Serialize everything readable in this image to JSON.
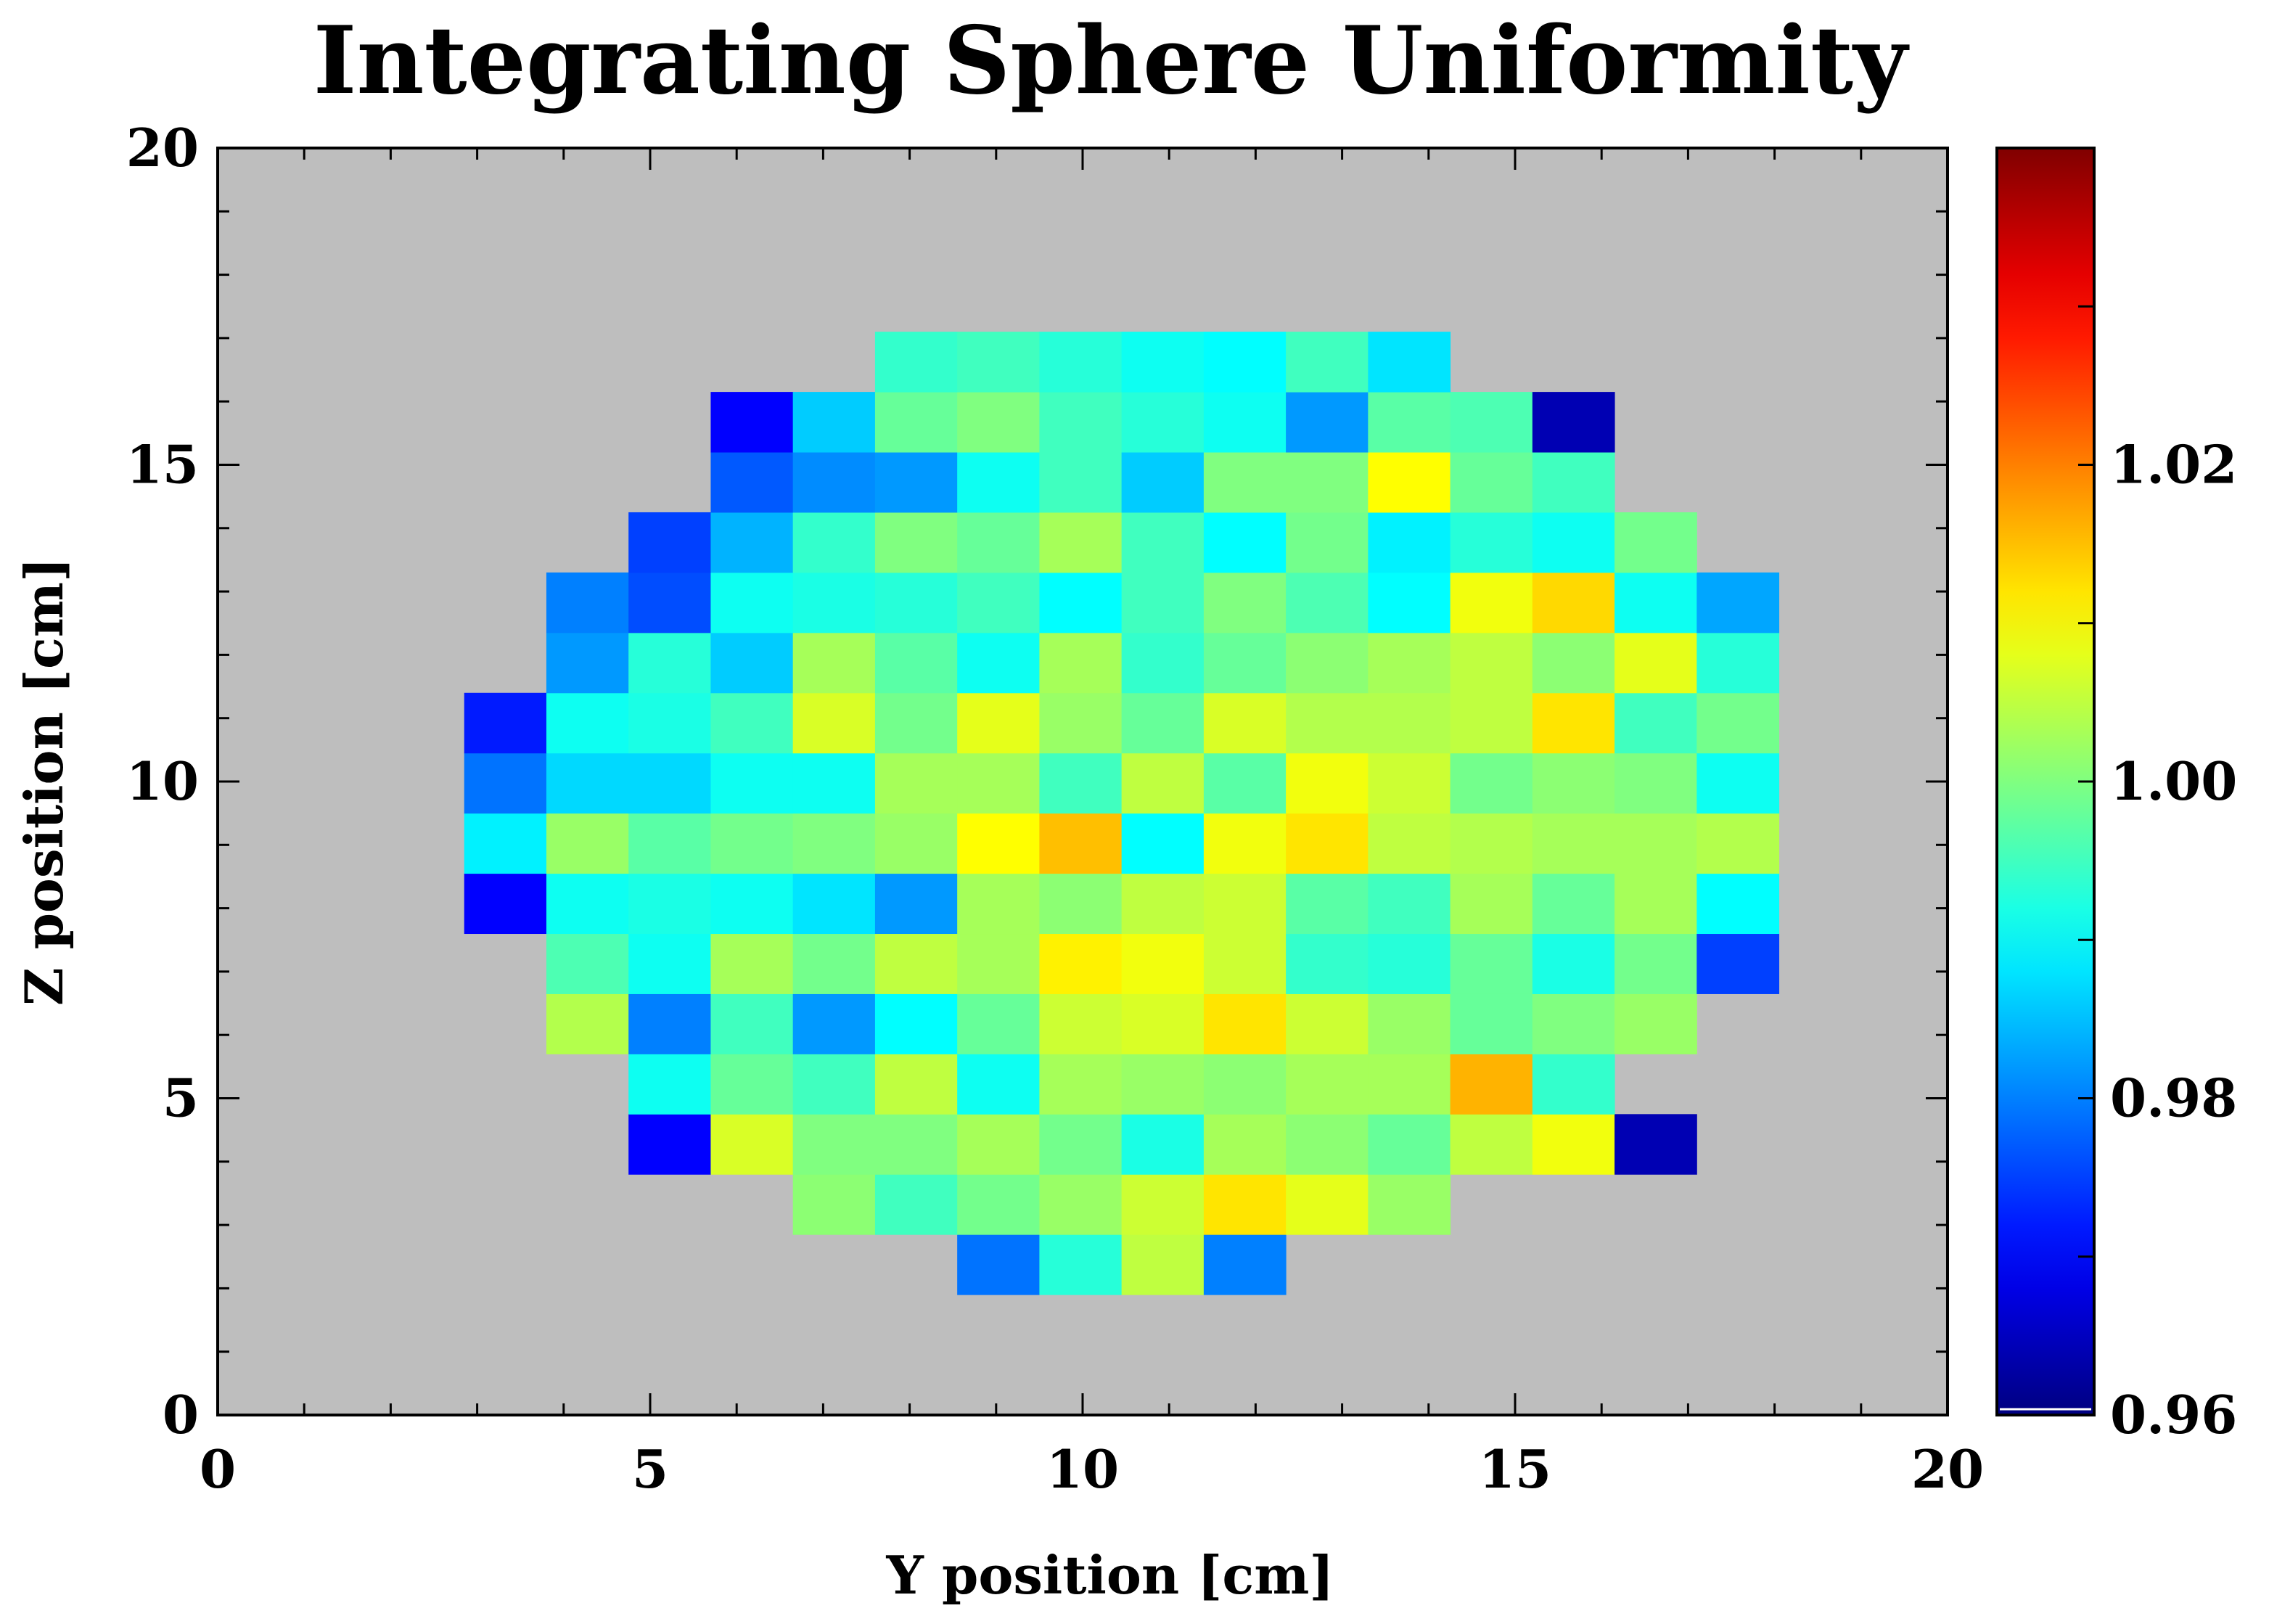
{
  "chart_data": {
    "type": "heatmap",
    "title": "Integrating Sphere Uniformity",
    "xlabel": "Y position [cm]",
    "ylabel": "Z position [cm]",
    "xlim": [
      0,
      20
    ],
    "ylim": [
      0,
      20
    ],
    "xticks": [
      0,
      5,
      10,
      15,
      20
    ],
    "yticks": [
      0,
      5,
      10,
      15,
      20
    ],
    "x_minor_step": 1,
    "y_minor_step": 1,
    "background_color": "#bebebe",
    "grid": false,
    "cell_width": 0.95,
    "cell_height": 0.95,
    "grid_origin": [
      2.85,
      1.9
    ],
    "colorbar": {
      "range": [
        0.96,
        1.04
      ],
      "ticks": [
        0.96,
        0.98,
        1.0,
        1.02
      ],
      "tick_labels": [
        "0.96",
        "0.98",
        "1.00",
        "1.02"
      ],
      "colormap": "jet"
    },
    "rows": [
      {
        "z_center": 2.38,
        "col_start": 6,
        "values": [
          0.979,
          0.993,
          1.005,
          0.98
        ]
      },
      {
        "z_center": 3.33,
        "col_start": 4,
        "values": [
          1.001,
          0.995,
          0.999,
          1.002,
          1.006,
          1.012,
          1.008,
          1.002
        ]
      },
      {
        "z_center": 4.28,
        "col_start": 2,
        "values": [
          0.97,
          1.007,
          1.0,
          1.0,
          1.003,
          0.999,
          0.992,
          1.003,
          1.001,
          0.998,
          1.005,
          1.009,
          0.964
        ]
      },
      {
        "z_center": 5.23,
        "col_start": 2,
        "values": [
          0.991,
          0.998,
          0.995,
          1.005,
          0.991,
          1.003,
          1.002,
          1.001,
          1.003,
          1.003,
          1.016,
          0.994
        ]
      },
      {
        "z_center": 6.18,
        "col_start": 1,
        "values": [
          1.004,
          0.98,
          0.995,
          0.982,
          0.99,
          0.998,
          1.006,
          1.007,
          1.012,
          1.006,
          1.002,
          0.998,
          1.0,
          1.002
        ]
      },
      {
        "z_center": 7.13,
        "col_start": 1,
        "values": [
          0.996,
          0.991,
          1.003,
          0.999,
          1.005,
          1.003,
          1.011,
          1.009,
          1.006,
          0.994,
          0.993,
          0.998,
          0.992,
          0.999,
          0.975
        ]
      },
      {
        "z_center": 8.08,
        "col_start": 0,
        "values": [
          0.97,
          0.991,
          0.992,
          0.991,
          0.988,
          0.982,
          1.003,
          1.001,
          1.005,
          1.006,
          0.997,
          0.995,
          1.003,
          0.998,
          1.003,
          0.99
        ]
      },
      {
        "z_center": 9.03,
        "col_start": 0,
        "values": [
          0.989,
          1.002,
          0.997,
          0.999,
          1.0,
          1.002,
          1.01,
          1.015,
          0.99,
          1.009,
          1.012,
          1.005,
          1.004,
          1.003,
          1.003,
          1.004
        ]
      },
      {
        "z_center": 9.98,
        "col_start": 0,
        "values": [
          0.979,
          0.987,
          0.987,
          0.991,
          0.991,
          1.003,
          1.003,
          0.995,
          1.005,
          0.997,
          1.009,
          1.006,
          0.999,
          1.001,
          1.0,
          0.991
        ]
      },
      {
        "z_center": 10.93,
        "col_start": 0,
        "values": [
          0.972,
          0.991,
          0.992,
          0.995,
          1.007,
          0.999,
          1.008,
          1.002,
          0.998,
          1.007,
          1.004,
          1.004,
          1.005,
          1.012,
          0.995,
          0.999
        ]
      },
      {
        "z_center": 11.88,
        "col_start": 1,
        "values": [
          0.982,
          0.993,
          0.986,
          1.003,
          0.997,
          0.991,
          1.003,
          0.994,
          0.998,
          1.001,
          1.003,
          1.005,
          1.001,
          1.008,
          0.993
        ]
      },
      {
        "z_center": 12.83,
        "col_start": 1,
        "values": [
          0.98,
          0.976,
          0.991,
          0.992,
          0.993,
          0.995,
          0.99,
          0.995,
          1.0,
          0.996,
          0.99,
          1.009,
          1.013,
          0.991,
          0.983
        ]
      },
      {
        "z_center": 13.78,
        "col_start": 2,
        "values": [
          0.975,
          0.984,
          0.994,
          1.0,
          0.998,
          1.003,
          0.995,
          0.99,
          0.999,
          0.989,
          0.993,
          0.991,
          0.999
        ]
      },
      {
        "z_center": 14.73,
        "col_start": 3,
        "values": [
          0.977,
          0.981,
          0.982,
          0.991,
          0.995,
          0.986,
          1.0,
          1.0,
          1.01,
          0.998,
          0.995
        ]
      },
      {
        "z_center": 15.68,
        "col_start": 3,
        "values": [
          0.97,
          0.986,
          0.998,
          1.0,
          0.995,
          0.993,
          0.991,
          0.982,
          0.997,
          0.996,
          0.964
        ]
      },
      {
        "z_center": 16.63,
        "col_start": 5,
        "values": [
          0.994,
          0.995,
          0.993,
          0.991,
          0.99,
          0.995,
          0.988
        ]
      }
    ]
  }
}
